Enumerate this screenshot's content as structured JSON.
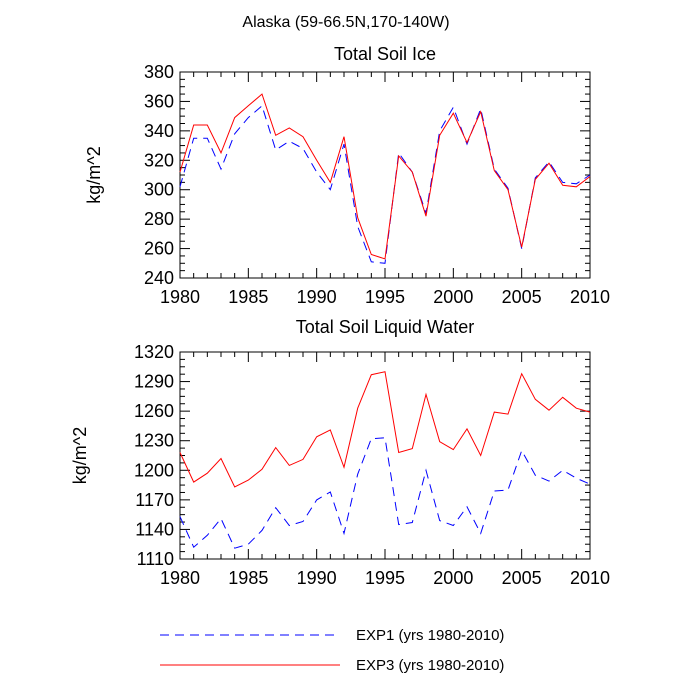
{
  "figure_title": "Alaska (59-66.5N,170-140W)",
  "colors": {
    "exp1": "#0000ff",
    "exp3": "#ff0000",
    "axis": "#000000"
  },
  "legend": [
    {
      "label": "EXP1 (yrs 1980-2010)",
      "style": "dashed",
      "color": "#0000ff"
    },
    {
      "label": "EXP3 (yrs 1980-2010)",
      "style": "solid",
      "color": "#ff0000"
    }
  ],
  "chart_data": [
    {
      "type": "line",
      "title": "Total Soil Ice",
      "xlabel": "",
      "ylabel": "kg/m^2",
      "xlim": [
        1980,
        2010
      ],
      "ylim": [
        240,
        380
      ],
      "xticks": [
        1980,
        1985,
        1990,
        1995,
        2000,
        2005,
        2010
      ],
      "yticks": [
        240,
        260,
        280,
        300,
        320,
        340,
        360,
        380
      ],
      "x": [
        1980,
        1981,
        1982,
        1983,
        1984,
        1985,
        1986,
        1987,
        1988,
        1989,
        1990,
        1991,
        1992,
        1993,
        1994,
        1995,
        1996,
        1997,
        1998,
        1999,
        2000,
        2001,
        2002,
        2003,
        2004,
        2005,
        2006,
        2007,
        2008,
        2009,
        2010
      ],
      "series": [
        {
          "name": "EXP1 (yrs 1980-2010)",
          "style": "dashed",
          "color": "#0000ff",
          "values": [
            302,
            335,
            335,
            314,
            338,
            349,
            357,
            327,
            333,
            328,
            312,
            300,
            331,
            275,
            251,
            250,
            325,
            312,
            284,
            340,
            356,
            331,
            355,
            314,
            301,
            260,
            308,
            319,
            305,
            304,
            310
          ]
        },
        {
          "name": "EXP3 (yrs 1980-2010)",
          "style": "solid",
          "color": "#ff0000",
          "values": [
            312,
            344,
            344,
            325,
            349,
            357,
            365,
            337,
            342,
            336,
            320,
            305,
            336,
            281,
            256,
            253,
            323,
            312,
            282,
            337,
            352,
            332,
            353,
            313,
            300,
            261,
            307,
            318,
            303,
            302,
            309
          ]
        }
      ]
    },
    {
      "type": "line",
      "title": "Total Soil Liquid Water",
      "xlabel": "",
      "ylabel": "kg/m^2",
      "xlim": [
        1980,
        2010
      ],
      "ylim": [
        1110,
        1320
      ],
      "xticks": [
        1980,
        1985,
        1990,
        1995,
        2000,
        2005,
        2010
      ],
      "yticks": [
        1110,
        1140,
        1170,
        1200,
        1230,
        1260,
        1290,
        1320
      ],
      "x": [
        1980,
        1981,
        1982,
        1983,
        1984,
        1985,
        1986,
        1987,
        1988,
        1989,
        1990,
        1991,
        1992,
        1993,
        1994,
        1995,
        1996,
        1997,
        1998,
        1999,
        2000,
        2001,
        2002,
        2003,
        2004,
        2005,
        2006,
        2007,
        2008,
        2009,
        2010
      ],
      "series": [
        {
          "name": "EXP1 (yrs 1980-2010)",
          "style": "dashed",
          "color": "#0000ff",
          "values": [
            1153,
            1122,
            1134,
            1151,
            1121,
            1125,
            1139,
            1162,
            1144,
            1148,
            1170,
            1178,
            1136,
            1196,
            1232,
            1233,
            1145,
            1147,
            1200,
            1149,
            1144,
            1163,
            1136,
            1179,
            1180,
            1220,
            1195,
            1189,
            1200,
            1192,
            1186
          ]
        },
        {
          "name": "EXP3 (yrs 1980-2010)",
          "style": "solid",
          "color": "#ff0000",
          "values": [
            1218,
            1188,
            1197,
            1212,
            1183,
            1190,
            1201,
            1223,
            1205,
            1211,
            1234,
            1241,
            1203,
            1263,
            1297,
            1300,
            1218,
            1222,
            1277,
            1229,
            1221,
            1242,
            1215,
            1259,
            1257,
            1298,
            1272,
            1261,
            1274,
            1263,
            1259
          ]
        }
      ]
    }
  ]
}
